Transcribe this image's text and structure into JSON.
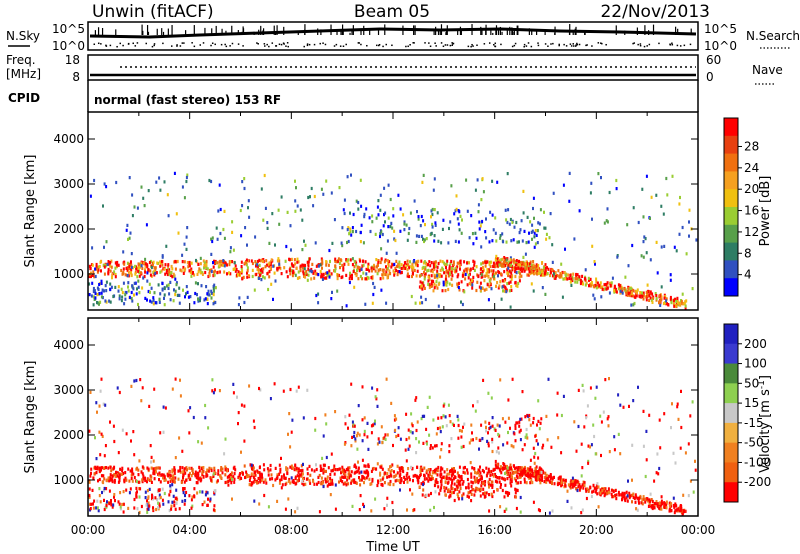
{
  "header": {
    "station": "Unwin (fitACF)",
    "beam": "Beam 05",
    "date": "22/Nov/2013"
  },
  "strips": {
    "nsky_label": "N.Sky",
    "nsky_ticks": [
      "10^5",
      "10^0"
    ],
    "nsearch_label": "N.Search",
    "freq_label_top": "Freq.",
    "freq_label_bottom": "[MHz]",
    "freq_ticks": [
      "18",
      "8"
    ],
    "nave_label": "Nave",
    "nave_ticks": [
      "60",
      "0"
    ],
    "cpid_label": "CPID",
    "cpid_text": "normal (fast stereo) 153 RF"
  },
  "chart_data": [
    {
      "type": "heatmap",
      "title": "",
      "ylabel": "Slant Range [km]",
      "xlabel": "Time UT",
      "x_ticks": [
        "00:00",
        "04:00",
        "08:00",
        "12:00",
        "16:00",
        "20:00",
        "00:00"
      ],
      "y_ticks": [
        1000,
        2000,
        3000,
        4000
      ],
      "ylim": [
        200,
        4600
      ],
      "xlim_hours": [
        0,
        24
      ],
      "colorbar": {
        "label": "Power [dB]",
        "ticks": [
          "4",
          "8",
          "12",
          "16",
          "20",
          "24",
          "28"
        ],
        "colors": [
          "#0000ff",
          "#3050c0",
          "#2e7d64",
          "#58a04a",
          "#9acd32",
          "#f0c010",
          "#f5a020",
          "#f07010",
          "#e84010",
          "#ff0000"
        ]
      },
      "features": [
        {
          "desc": "main band",
          "t_start": 0,
          "t_end": 18,
          "range_center": 1150,
          "value": "20-28 dB"
        },
        {
          "desc": "descending band",
          "t_start": 16,
          "t_end": 23.5,
          "range_from": 1300,
          "range_to": 350,
          "value": "24-28 dB"
        }
      ]
    },
    {
      "type": "heatmap",
      "title": "",
      "ylabel": "Slant Range [km]",
      "xlabel": "Time UT",
      "x_ticks": [
        "00:00",
        "04:00",
        "08:00",
        "12:00",
        "16:00",
        "20:00",
        "00:00"
      ],
      "y_ticks": [
        1000,
        2000,
        3000,
        4000
      ],
      "ylim": [
        200,
        4600
      ],
      "xlim_hours": [
        0,
        24
      ],
      "colorbar": {
        "label": "Velocity [m s^-1]",
        "ticks": [
          "200",
          "100",
          "50",
          "15",
          "-15",
          "-50",
          "-100",
          "-200"
        ],
        "colors": [
          "#2020c0",
          "#3a3ad0",
          "#4a8a3a",
          "#8ed050",
          "#c8c8c8",
          "#f0b040",
          "#f08020",
          "#f06010",
          "#ff0000"
        ]
      },
      "features": [
        {
          "desc": "main band",
          "t_start": 0,
          "t_end": 18,
          "range_center": 1150,
          "value": "-100 to -200 m/s"
        },
        {
          "desc": "descending band",
          "t_start": 16,
          "t_end": 23.5,
          "range_from": 1300,
          "range_to": 350,
          "value": "-50 to -200 m/s"
        }
      ]
    }
  ]
}
